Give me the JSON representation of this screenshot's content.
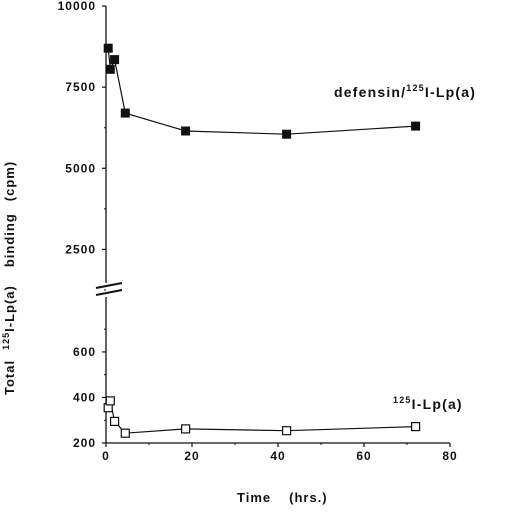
{
  "chart_data": {
    "type": "line",
    "xlabel": "Time",
    "xlabel_units": "(hrs.)",
    "ylabel": {
      "prefix": "Total",
      "sup": "125",
      "main": "I-Lp(a)",
      "suffix_1": "binding",
      "suffix_2": "(cpm)"
    },
    "xlim": [
      0,
      80
    ],
    "x_ticks": [
      "0",
      "20",
      "40",
      "60",
      "80"
    ],
    "y_axis_broken": true,
    "y_upper": {
      "ylim": [
        1250,
        10000
      ],
      "ticks": [
        "2500",
        "5000",
        "7500",
        "10000"
      ]
    },
    "y_lower": {
      "ylim": [
        200,
        850
      ],
      "ticks": [
        "200",
        "400",
        "600"
      ]
    },
    "series": [
      {
        "name_sup": "125",
        "name_main": "I-Lp(a)",
        "name_prefix": "defensin/",
        "marker": "filled-square",
        "panel": "upper",
        "x": [
          0.5,
          1,
          2,
          4.5,
          18.5,
          42,
          72
        ],
        "y": [
          8700,
          8050,
          8350,
          6700,
          6150,
          6050,
          6300
        ]
      },
      {
        "name_sup": "125",
        "name_main": "I-Lp(a)",
        "name_prefix": "",
        "marker": "open-square",
        "panel": "lower",
        "x": [
          0.5,
          1,
          2,
          4.5,
          18.5,
          42,
          72
        ],
        "y": [
          355,
          385,
          295,
          243,
          262,
          254,
          272
        ]
      }
    ],
    "grid": false
  }
}
